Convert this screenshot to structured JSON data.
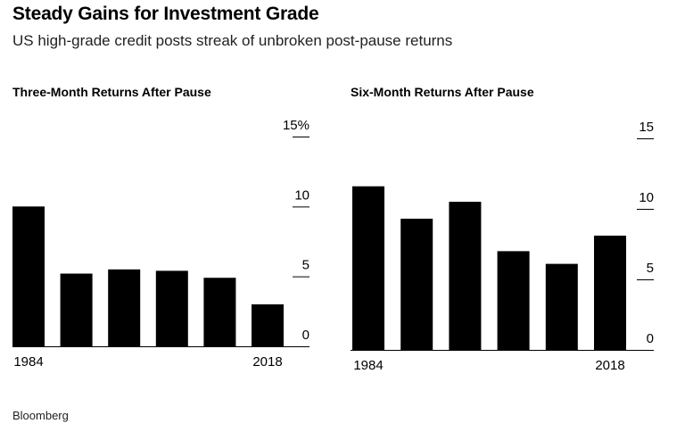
{
  "header": {
    "title": "Steady Gains for Investment Grade",
    "subtitle": "US high-grade credit posts streak of unbroken post-pause returns"
  },
  "footer": {
    "source": "Bloomberg"
  },
  "chart_data": [
    {
      "type": "bar",
      "title": "Three-Month Returns After Pause",
      "categories": [
        "1984",
        "",
        "",
        "",
        "",
        "2018"
      ],
      "values": [
        10.0,
        5.2,
        5.5,
        5.4,
        4.9,
        3.0
      ],
      "ylim": [
        0,
        15
      ],
      "yticks": [
        0,
        5,
        10,
        15
      ],
      "ytick_labels": [
        "0",
        "5",
        "10",
        "15%"
      ],
      "grid": false,
      "color": "#000000"
    },
    {
      "type": "bar",
      "title": "Six-Month Returns After Pause",
      "categories": [
        "1984",
        "",
        "",
        "",
        "",
        "2018"
      ],
      "values": [
        11.6,
        9.3,
        10.5,
        7.0,
        6.1,
        8.1
      ],
      "ylim": [
        0,
        15
      ],
      "yticks": [
        0,
        5,
        10,
        15
      ],
      "ytick_labels": [
        "0",
        "5",
        "10",
        "15"
      ],
      "grid": false,
      "color": "#000000"
    }
  ]
}
